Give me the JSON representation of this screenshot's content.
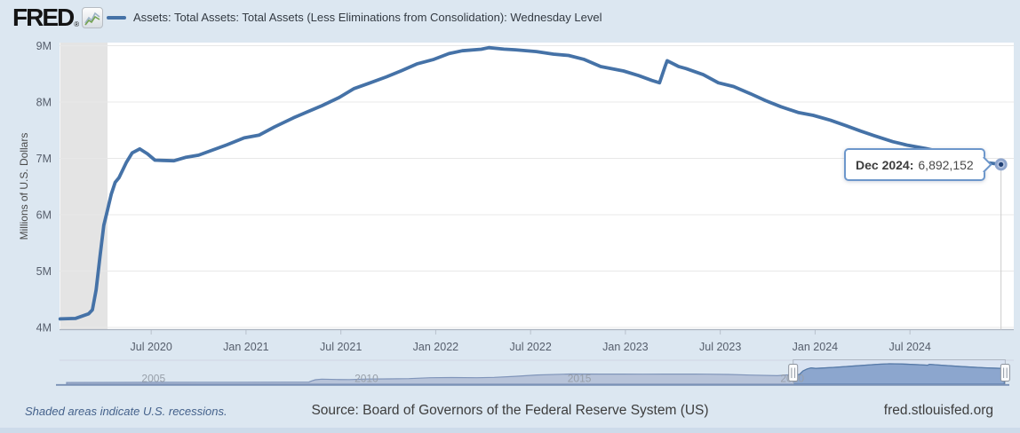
{
  "header": {
    "logo_text": "FRED",
    "logo_reg": "®",
    "legend_label": "Assets: Total Assets: Total Assets (Less Eliminations from Consolidation): Wednesday Level"
  },
  "tooltip": {
    "date_label": "Dec 2024:",
    "value_label": "6,892,152"
  },
  "footer": {
    "recession_note": "Shaded areas indicate U.S. recessions.",
    "source": "Source: Board of Governors of the Federal Reserve System (US)",
    "site": "fred.stlouisfed.org"
  },
  "colors": {
    "series": "#4572a7",
    "page_bg": "#dce7f1",
    "plot_bg": "#ffffff",
    "recession_band": "#e4e4e4",
    "gridline": "#e8e8e8",
    "axis_line": "#aab3c0",
    "tooltip_border": "#6d97cb",
    "minimap_area_light": "#b7c3d9",
    "minimap_area_dark": "#8ca6ce",
    "minimap_line_light": "#8095ba",
    "minimap_line_dark": "#567aa8",
    "minimap_selection_bg": "#d9e3f2"
  },
  "chart_data": {
    "type": "line",
    "title": "Assets: Total Assets: Total Assets (Less Eliminations from Consolidation): Wednesday Level",
    "ylabel": "Millions of U.S. Dollars",
    "xlabel": "",
    "grid": "horizontal",
    "legend_position": "top",
    "ylim": [
      3900000,
      9100000
    ],
    "x_range_visible": [
      "Jan 2020",
      "Dec 2024"
    ],
    "yticks": [
      {
        "label": "4M",
        "value": 4000000
      },
      {
        "label": "5M",
        "value": 5000000
      },
      {
        "label": "6M",
        "value": 6000000
      },
      {
        "label": "7M",
        "value": 7000000
      },
      {
        "label": "8M",
        "value": 8000000
      },
      {
        "label": "9M",
        "value": 9000000
      }
    ],
    "xticks": [
      {
        "label": "Jul 2020",
        "t": 2020.5
      },
      {
        "label": "Jan 2021",
        "t": 2021.0
      },
      {
        "label": "Jul 2021",
        "t": 2021.5
      },
      {
        "label": "Jan 2022",
        "t": 2022.0
      },
      {
        "label": "Jul 2022",
        "t": 2022.5
      },
      {
        "label": "Jan 2023",
        "t": 2023.0
      },
      {
        "label": "Jul 2023",
        "t": 2023.5
      },
      {
        "label": "Jan 2024",
        "t": 2024.0
      },
      {
        "label": "Jul 2024",
        "t": 2024.5
      }
    ],
    "recession_bands": [
      {
        "name": "COVID-19 recession",
        "start": 2020.02,
        "end": 2020.27
      }
    ],
    "series": [
      {
        "name": "Assets: Total Assets: Total Assets (Less Eliminations from Consolidation): Wednesday Level",
        "color": "#4572a7",
        "units": "Millions of U.S. Dollars",
        "points": [
          [
            2020.02,
            4151630
          ],
          [
            2020.1,
            4158637
          ],
          [
            2020.17,
            4241507
          ],
          [
            2020.19,
            4312000
          ],
          [
            2020.21,
            4668333
          ],
          [
            2020.23,
            5254297
          ],
          [
            2020.25,
            5811516
          ],
          [
            2020.27,
            6083360
          ],
          [
            2020.29,
            6367963
          ],
          [
            2020.31,
            6573339
          ],
          [
            2020.33,
            6655926
          ],
          [
            2020.37,
            6934000
          ],
          [
            2020.4,
            7097315
          ],
          [
            2020.44,
            7168936
          ],
          [
            2020.48,
            7082000
          ],
          [
            2020.52,
            6969177
          ],
          [
            2020.56,
            6964000
          ],
          [
            2020.62,
            6957000
          ],
          [
            2020.68,
            7017000
          ],
          [
            2020.75,
            7056000
          ],
          [
            2020.83,
            7156000
          ],
          [
            2020.9,
            7243000
          ],
          [
            2020.99,
            7363400
          ],
          [
            2021.07,
            7414941
          ],
          [
            2021.15,
            7557000
          ],
          [
            2021.25,
            7719000
          ],
          [
            2021.32,
            7820000
          ],
          [
            2021.4,
            7935000
          ],
          [
            2021.49,
            8078544
          ],
          [
            2021.57,
            8240000
          ],
          [
            2021.65,
            8336000
          ],
          [
            2021.74,
            8448000
          ],
          [
            2021.82,
            8558000
          ],
          [
            2021.9,
            8676000
          ],
          [
            2021.99,
            8757460
          ],
          [
            2022.07,
            8860000
          ],
          [
            2022.14,
            8911000
          ],
          [
            2022.24,
            8937000
          ],
          [
            2022.28,
            8965487
          ],
          [
            2022.36,
            8939000
          ],
          [
            2022.42,
            8927000
          ],
          [
            2022.53,
            8896000
          ],
          [
            2022.62,
            8851000
          ],
          [
            2022.7,
            8826000
          ],
          [
            2022.78,
            8759000
          ],
          [
            2022.87,
            8630000
          ],
          [
            2022.99,
            8551000
          ],
          [
            2023.07,
            8470000
          ],
          [
            2023.14,
            8383000
          ],
          [
            2023.18,
            8342283
          ],
          [
            2023.21,
            8639255
          ],
          [
            2023.22,
            8733787
          ],
          [
            2023.28,
            8632000
          ],
          [
            2023.32,
            8593000
          ],
          [
            2023.41,
            8486000
          ],
          [
            2023.49,
            8341000
          ],
          [
            2023.57,
            8275000
          ],
          [
            2023.66,
            8146000
          ],
          [
            2023.74,
            8023000
          ],
          [
            2023.82,
            7916000
          ],
          [
            2023.91,
            7815000
          ],
          [
            2023.99,
            7764000
          ],
          [
            2024.08,
            7678000
          ],
          [
            2024.16,
            7585000
          ],
          [
            2024.24,
            7485000
          ],
          [
            2024.31,
            7404000
          ],
          [
            2024.41,
            7296000
          ],
          [
            2024.49,
            7232000
          ],
          [
            2024.58,
            7178000
          ],
          [
            2024.66,
            7118000
          ],
          [
            2024.74,
            7083000
          ],
          [
            2024.83,
            7008000
          ],
          [
            2024.9,
            6924000
          ],
          [
            2024.98,
            6892152
          ]
        ]
      }
    ],
    "last_point": {
      "t": 2024.98,
      "value": 6892152,
      "label": "Dec 2024: 6,892,152"
    },
    "minimap": {
      "year_ticks": [
        {
          "label": "2005",
          "t": 2005
        },
        {
          "label": "2010",
          "t": 2010
        },
        {
          "label": "2015",
          "t": 2015
        },
        {
          "label": "2020",
          "t": 2020
        }
      ],
      "selection": [
        2020.02,
        2025.0
      ],
      "points": [
        [
          2002.96,
          730000
        ],
        [
          2004.0,
          771000
        ],
        [
          2005.0,
          810000
        ],
        [
          2006.0,
          852000
        ],
        [
          2007.0,
          870000
        ],
        [
          2008.2,
          889000
        ],
        [
          2008.65,
          940000
        ],
        [
          2008.72,
          1500000
        ],
        [
          2008.8,
          1950000
        ],
        [
          2008.95,
          2240000
        ],
        [
          2009.3,
          2060000
        ],
        [
          2009.6,
          2020000
        ],
        [
          2010.0,
          2270000
        ],
        [
          2010.5,
          2330000
        ],
        [
          2011.0,
          2470000
        ],
        [
          2011.5,
          2850000
        ],
        [
          2012.0,
          2928000
        ],
        [
          2012.6,
          2850000
        ],
        [
          2013.0,
          3010000
        ],
        [
          2013.5,
          3480000
        ],
        [
          2014.0,
          4060000
        ],
        [
          2014.8,
          4500000
        ],
        [
          2015.5,
          4460000
        ],
        [
          2016.0,
          4470000
        ],
        [
          2016.5,
          4430000
        ],
        [
          2017.0,
          4450000
        ],
        [
          2017.7,
          4460000
        ],
        [
          2018.0,
          4410000
        ],
        [
          2018.5,
          4290000
        ],
        [
          2019.0,
          4020000
        ],
        [
          2019.65,
          3760000
        ],
        [
          2019.85,
          4050000
        ],
        [
          2020.0,
          4170000
        ],
        [
          2020.17,
          4310000
        ],
        [
          2020.25,
          5810000
        ],
        [
          2020.35,
          6720000
        ],
        [
          2020.44,
          7169000
        ],
        [
          2020.55,
          6960000
        ],
        [
          2021.0,
          7410000
        ],
        [
          2021.5,
          8080000
        ],
        [
          2022.0,
          8760000
        ],
        [
          2022.28,
          8965000
        ],
        [
          2022.55,
          8890000
        ],
        [
          2023.0,
          8550000
        ],
        [
          2023.18,
          8342000
        ],
        [
          2023.22,
          8734000
        ],
        [
          2023.5,
          8340000
        ],
        [
          2024.0,
          7730000
        ],
        [
          2024.5,
          7230000
        ],
        [
          2024.98,
          6892152
        ]
      ]
    }
  }
}
